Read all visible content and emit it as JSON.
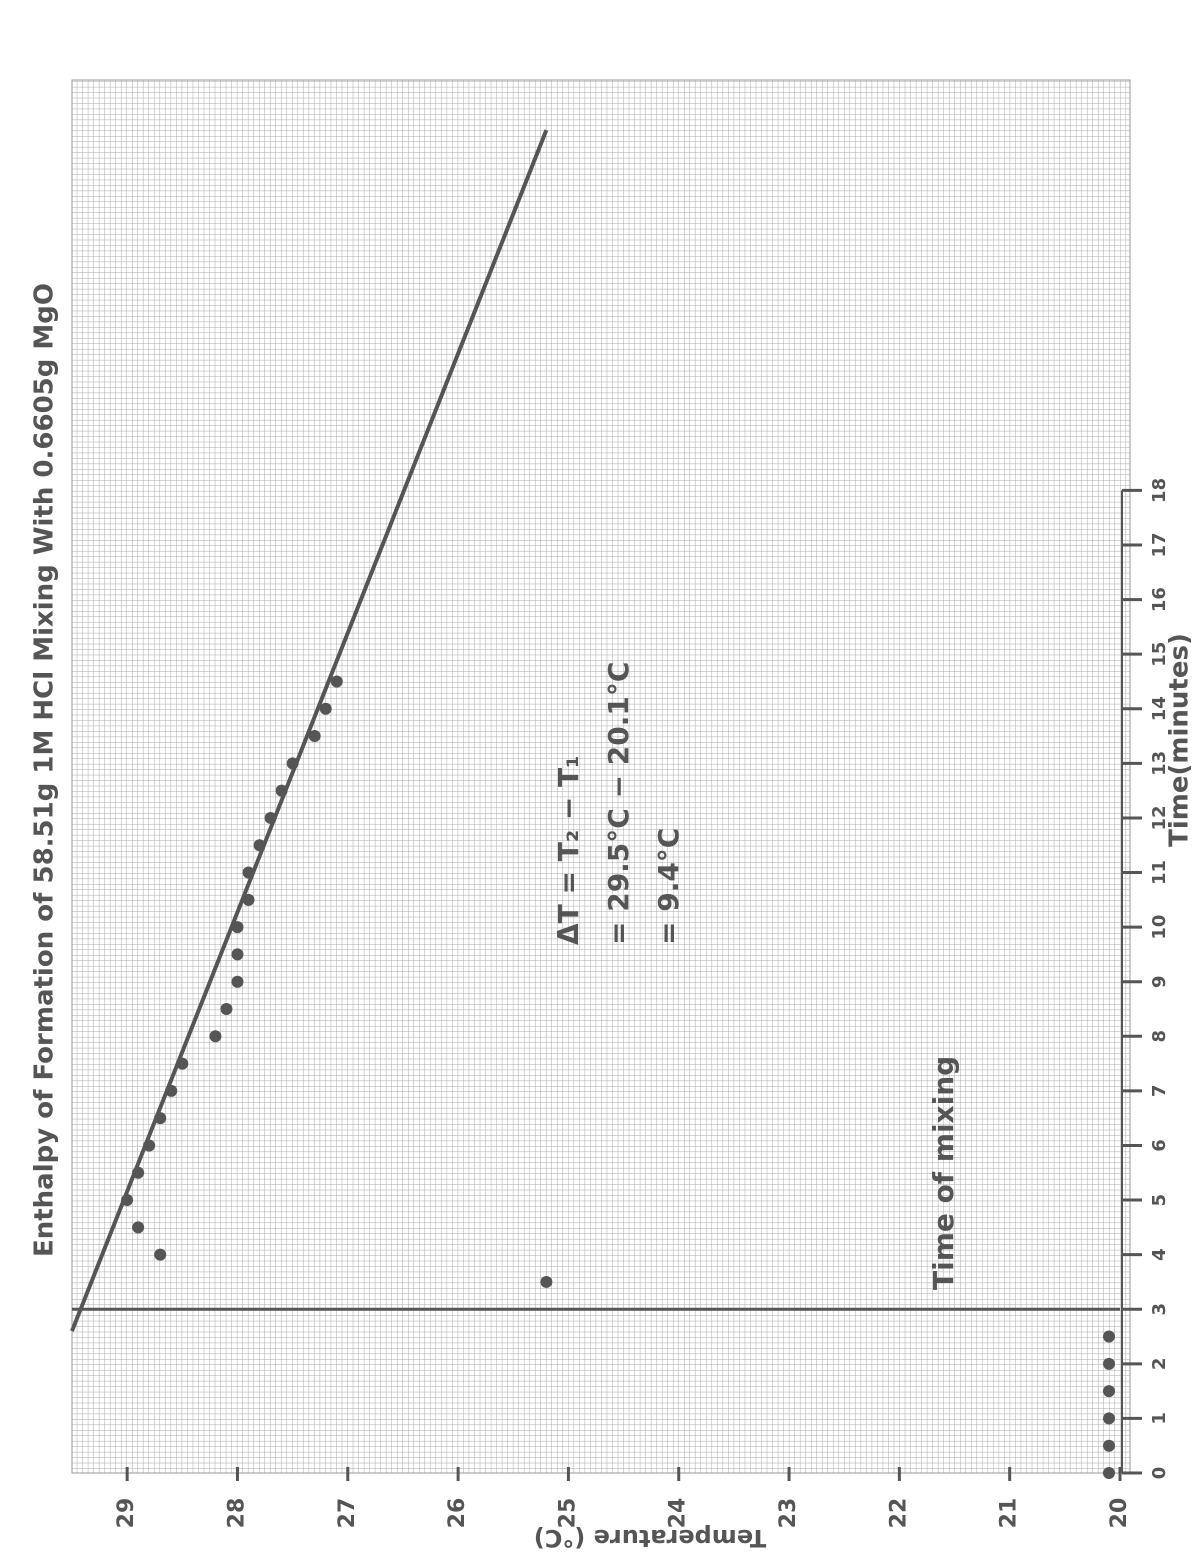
{
  "chart_data": {
    "type": "scatter",
    "title": "Enthalpy of Formation of 58.51g 1M HCl Mixing With 0.6605g MgO",
    "x_label": "Time(minutes)",
    "y_label": "Temperature (°C)",
    "x": [
      0,
      0.5,
      1,
      1.5,
      2,
      2.5,
      3.5,
      4,
      4.5,
      5,
      5.5,
      6,
      6.5,
      7,
      7.5,
      8,
      8.5,
      9,
      9.5,
      10,
      10.5,
      11,
      11.5,
      12,
      12.5,
      13,
      13.5,
      14,
      14.5
    ],
    "values": [
      20.1,
      20.1,
      20.1,
      20.1,
      20.1,
      20.1,
      25.2,
      28.7,
      28.9,
      29.0,
      28.9,
      28.8,
      28.7,
      28.6,
      28.5,
      28.2,
      28.1,
      28.0,
      28.0,
      28.0,
      27.9,
      27.9,
      27.8,
      27.7,
      27.6,
      27.5,
      27.3,
      27.2,
      27.1
    ],
    "color": "#555555",
    "fit_line": {
      "x": [
        2.6,
        24.6
      ],
      "values": [
        29.5,
        25.2
      ]
    },
    "mixing_time": 3,
    "xlim": [
      0,
      25.5
    ],
    "ylim": [
      20,
      29.5
    ],
    "xticks": [
      0,
      1,
      2,
      3,
      4,
      5,
      6,
      7,
      8,
      9,
      10,
      11,
      12,
      13,
      14,
      15,
      16,
      17,
      18
    ],
    "yticks": [
      20,
      21,
      22,
      23,
      24,
      25,
      26,
      27,
      28,
      29
    ],
    "grid": true,
    "annotations": [
      "ΔT = T₂ − T₁",
      "= 29.5°C − 20.1°C",
      "= 9.4°C",
      "Time of mixing"
    ]
  }
}
